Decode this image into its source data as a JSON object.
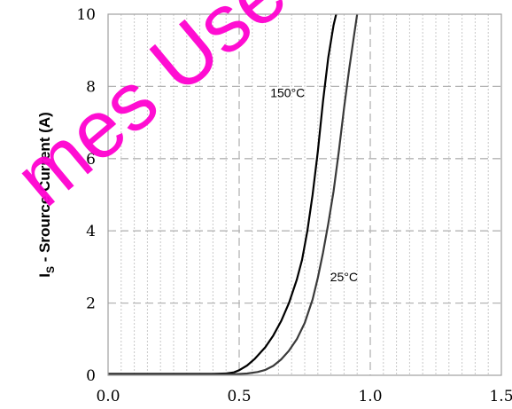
{
  "chart_data": {
    "type": "line",
    "title": "",
    "xlabel": "",
    "ylabel": "I",
    "ylabel_subscript": "S",
    "ylabel_rest": " - Srource Current (A)",
    "xlim": [
      0,
      1.5
    ],
    "ylim": [
      0,
      10
    ],
    "grid": true,
    "x_tick_labels": [
      "0.0",
      "0.5",
      "1.0",
      "1.5"
    ],
    "x_tick_values": [
      0,
      0.5,
      1.0,
      1.5
    ],
    "y_tick_labels": [
      "0",
      "2",
      "4",
      "6",
      "8",
      "10"
    ],
    "y_tick_values": [
      0,
      2,
      4,
      6,
      8,
      10
    ],
    "series": [
      {
        "name": "150°C",
        "color": "#000000",
        "x": [
          0,
          0.4,
          0.45,
          0.48,
          0.5,
          0.53,
          0.56,
          0.6,
          0.63,
          0.66,
          0.69,
          0.72,
          0.74,
          0.76,
          0.78,
          0.8,
          0.82,
          0.84,
          0.86,
          0.87
        ],
        "y": [
          0.04,
          0.04,
          0.05,
          0.08,
          0.14,
          0.27,
          0.46,
          0.78,
          1.1,
          1.5,
          2.0,
          2.65,
          3.2,
          4.0,
          5.0,
          6.2,
          7.6,
          8.8,
          9.7,
          10.0
        ]
      },
      {
        "name": "25°C",
        "color": "#3a3a3a",
        "x": [
          0,
          0.48,
          0.53,
          0.57,
          0.6,
          0.63,
          0.66,
          0.69,
          0.72,
          0.75,
          0.78,
          0.8,
          0.82,
          0.84,
          0.86,
          0.88,
          0.9,
          0.92,
          0.94,
          0.95
        ],
        "y": [
          0.03,
          0.03,
          0.05,
          0.09,
          0.15,
          0.26,
          0.44,
          0.68,
          1.0,
          1.45,
          2.1,
          2.7,
          3.4,
          4.2,
          5.1,
          6.2,
          7.4,
          8.5,
          9.5,
          10.0
        ]
      }
    ],
    "annotations": [
      {
        "text": "150°C",
        "x": 0.685,
        "y": 7.7
      },
      {
        "text": "25°C",
        "x": 0.9,
        "y": 2.6
      }
    ]
  },
  "watermark": {
    "text": "mes Use",
    "color": "#ff00d0"
  }
}
